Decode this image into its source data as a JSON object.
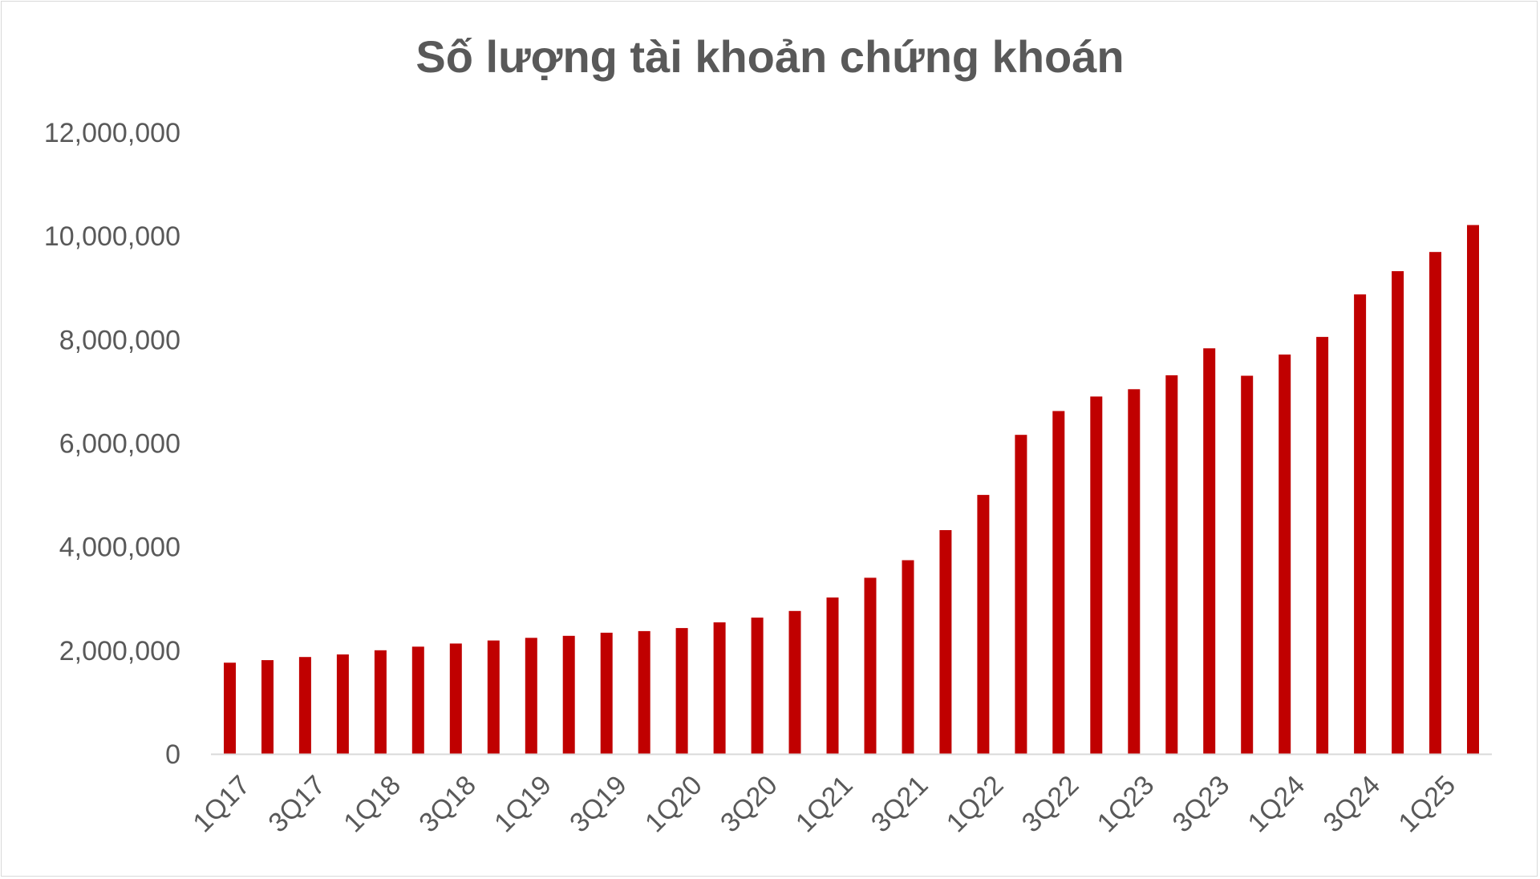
{
  "chart_data": {
    "type": "bar",
    "title": "Số lượng tài khoản chứng khoán",
    "xlabel": "",
    "ylabel": "",
    "categories": [
      "1Q17",
      "2Q17",
      "3Q17",
      "4Q17",
      "1Q18",
      "2Q18",
      "3Q18",
      "4Q18",
      "1Q19",
      "2Q19",
      "3Q19",
      "4Q19",
      "1Q20",
      "2Q20",
      "3Q20",
      "4Q20",
      "1Q21",
      "2Q21",
      "3Q21",
      "4Q21",
      "1Q22",
      "2Q22",
      "3Q22",
      "4Q22",
      "1Q23",
      "2Q23",
      "3Q23",
      "4Q23",
      "1Q24",
      "2Q24",
      "3Q24",
      "4Q24",
      "1Q25",
      "2Q25"
    ],
    "tick_labels": [
      "1Q17",
      "3Q17",
      "1Q18",
      "3Q18",
      "1Q19",
      "3Q19",
      "1Q20",
      "3Q20",
      "1Q21",
      "3Q21",
      "1Q22",
      "3Q22",
      "1Q23",
      "3Q23",
      "1Q24",
      "3Q24",
      "1Q25"
    ],
    "values": [
      1760000,
      1810000,
      1870000,
      1920000,
      2000000,
      2070000,
      2130000,
      2190000,
      2240000,
      2280000,
      2340000,
      2370000,
      2430000,
      2540000,
      2630000,
      2760000,
      3020000,
      3400000,
      3740000,
      4320000,
      5000000,
      6160000,
      6620000,
      6900000,
      7040000,
      7310000,
      7830000,
      7300000,
      7710000,
      8050000,
      8870000,
      9320000,
      9690000,
      10210000
    ],
    "ylim": [
      0,
      12000000
    ],
    "yticks": [
      0,
      2000000,
      4000000,
      6000000,
      8000000,
      10000000,
      12000000
    ],
    "ytick_labels": [
      "0",
      "2,000,000",
      "4,000,000",
      "6,000,000",
      "8,000,000",
      "10,000,000",
      "12,000,000"
    ],
    "grid": false,
    "legend": "none",
    "colors": {
      "bar": "#c00000",
      "axis": "#d9d9d9",
      "text": "#595959"
    }
  }
}
